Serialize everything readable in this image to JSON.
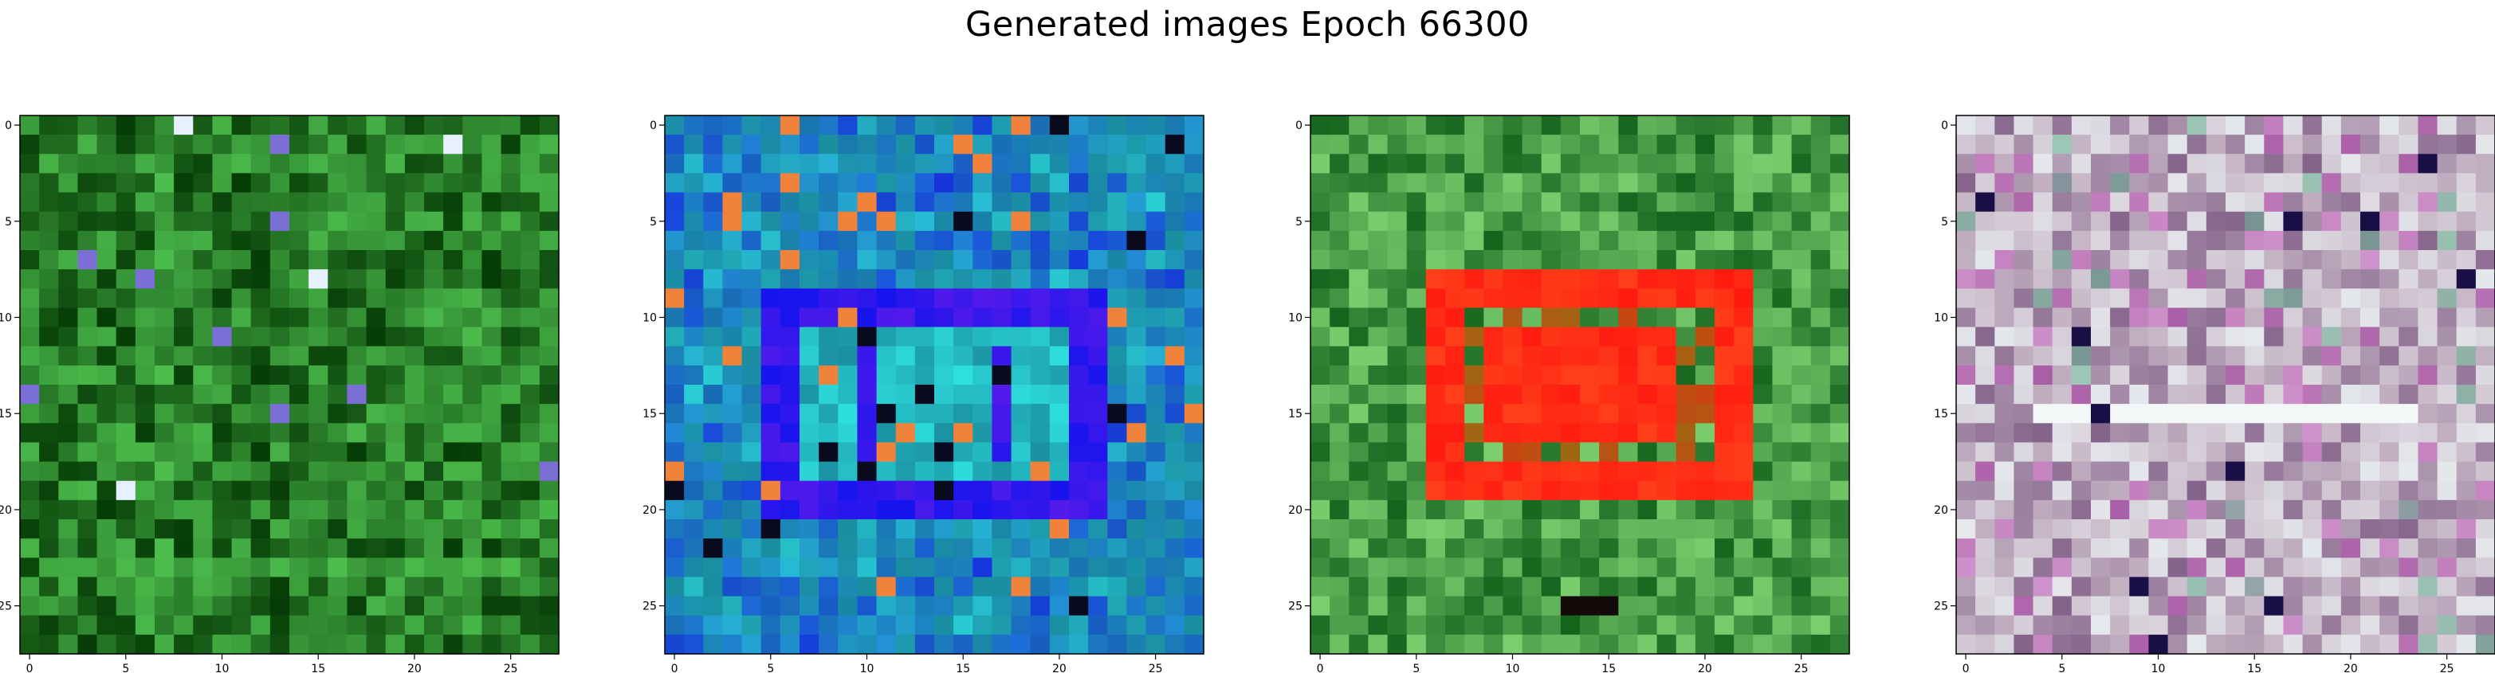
{
  "title": "Generated images Epoch 66300",
  "chart_data": [
    {
      "type": "heatmap",
      "panel": 1,
      "description_theme": "green",
      "grid_size": [
        28,
        28
      ],
      "xticks": [
        0,
        5,
        10,
        15,
        20,
        25
      ],
      "yticks": [
        0,
        5,
        10,
        15,
        20,
        25
      ],
      "xlim": [
        -0.5,
        27.5
      ],
      "ylim": [
        27.5,
        -0.5
      ],
      "palette": {
        "base": "#0a6e0a",
        "dark": "#063d06",
        "light": "#55cc55",
        "accent": "#7b6fd6"
      }
    },
    {
      "type": "heatmap",
      "panel": 2,
      "description_theme": "blue-cyan",
      "grid_size": [
        28,
        28
      ],
      "xticks": [
        0,
        5,
        10,
        15,
        20,
        25
      ],
      "yticks": [
        0,
        5,
        10,
        15,
        20,
        25
      ],
      "xlim": [
        -0.5,
        27.5
      ],
      "ylim": [
        27.5,
        -0.5
      ],
      "palette": {
        "base": "#1a8fa0",
        "dark": "#1414ee",
        "light": "#2ee0e0",
        "accent": "#7a1fe8"
      }
    },
    {
      "type": "heatmap",
      "panel": 3,
      "description_theme": "green-with-red-square",
      "grid_size": [
        28,
        28
      ],
      "xticks": [
        0,
        5,
        10,
        15,
        20,
        25
      ],
      "yticks": [
        0,
        5,
        10,
        15,
        20,
        25
      ],
      "xlim": [
        -0.5,
        27.5
      ],
      "ylim": [
        27.5,
        -0.5
      ],
      "palette": {
        "base": "#2e9a3a",
        "dark": "#14641e",
        "light": "#7ccf6e",
        "accent": "#ff1a10"
      }
    },
    {
      "type": "heatmap",
      "panel": 4,
      "description_theme": "pastel-noise",
      "grid_size": [
        28,
        28
      ],
      "xticks": [
        0,
        5,
        10,
        15,
        20,
        25
      ],
      "yticks": [
        0,
        5,
        10,
        15,
        20,
        25
      ],
      "xlim": [
        -0.5,
        27.5
      ],
      "ylim": [
        27.5,
        -0.5
      ],
      "palette": {
        "base": "#c9b9c8",
        "dark": "#7d5a84",
        "light": "#e8eef0",
        "accent": "#c05ab8"
      }
    }
  ]
}
